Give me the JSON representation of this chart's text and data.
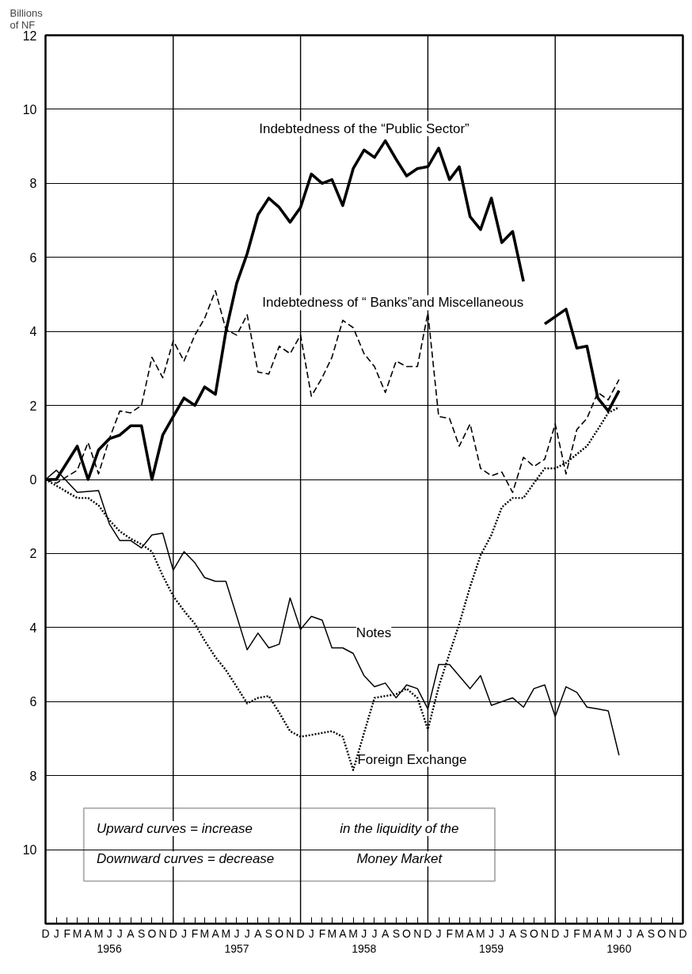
{
  "chart_data": {
    "type": "line",
    "ylabel": "Billions\nof NF",
    "xlim": [
      "1955-12",
      "1960-12"
    ],
    "ylim": [
      -12,
      12
    ],
    "xticks": [
      {
        "value": "1955-12",
        "label": "D"
      },
      {
        "value": "1956-01",
        "label": "J"
      },
      {
        "value": "1956-02",
        "label": "F"
      },
      {
        "value": "1956-03",
        "label": "M"
      },
      {
        "value": "1956-04",
        "label": "A"
      },
      {
        "value": "1956-05",
        "label": "M"
      },
      {
        "value": "1956-06",
        "label": "J\n1956"
      },
      {
        "value": "1956-07",
        "label": "J"
      },
      {
        "value": "1956-08",
        "label": "A"
      },
      {
        "value": "1956-09",
        "label": "S"
      },
      {
        "value": "1956-10",
        "label": "O"
      },
      {
        "value": "1956-11",
        "label": "N"
      },
      {
        "value": "1956-12",
        "label": "D"
      },
      {
        "value": "1957-01",
        "label": "J"
      },
      {
        "value": "1957-02",
        "label": "F"
      },
      {
        "value": "1957-03",
        "label": "M"
      },
      {
        "value": "1957-04",
        "label": "A"
      },
      {
        "value": "1957-05",
        "label": "M"
      },
      {
        "value": "1957-06",
        "label": "J\n1957"
      },
      {
        "value": "1957-07",
        "label": "J"
      },
      {
        "value": "1957-08",
        "label": "A"
      },
      {
        "value": "1957-09",
        "label": "S"
      },
      {
        "value": "1957-10",
        "label": "O"
      },
      {
        "value": "1957-11",
        "label": "N"
      },
      {
        "value": "1957-12",
        "label": "D"
      },
      {
        "value": "1958-01",
        "label": "J"
      },
      {
        "value": "1958-02",
        "label": "F"
      },
      {
        "value": "1958-03",
        "label": "M"
      },
      {
        "value": "1958-04",
        "label": "A"
      },
      {
        "value": "1958-05",
        "label": "M"
      },
      {
        "value": "1958-06",
        "label": "J\n1958"
      },
      {
        "value": "1958-07",
        "label": "J"
      },
      {
        "value": "1958-08",
        "label": "A"
      },
      {
        "value": "1958-09",
        "label": "S"
      },
      {
        "value": "1958-10",
        "label": "O"
      },
      {
        "value": "1958-11",
        "label": "N"
      },
      {
        "value": "1958-12",
        "label": "D"
      },
      {
        "value": "1959-01",
        "label": "J"
      },
      {
        "value": "1959-02",
        "label": "F"
      },
      {
        "value": "1959-03",
        "label": "M"
      },
      {
        "value": "1959-04",
        "label": "A"
      },
      {
        "value": "1959-05",
        "label": "M"
      },
      {
        "value": "1959-06",
        "label": "J\n1959"
      },
      {
        "value": "1959-07",
        "label": "J"
      },
      {
        "value": "1959-08",
        "label": "A"
      },
      {
        "value": "1959-09",
        "label": "S"
      },
      {
        "value": "1959-10",
        "label": "O"
      },
      {
        "value": "1959-11",
        "label": "N"
      },
      {
        "value": "1959-12",
        "label": "D"
      },
      {
        "value": "1960-01",
        "label": "J"
      },
      {
        "value": "1960-02",
        "label": "F"
      },
      {
        "value": "1960-03",
        "label": "M"
      },
      {
        "value": "1960-04",
        "label": "A"
      },
      {
        "value": "1960-05",
        "label": "M"
      },
      {
        "value": "1960-06",
        "label": "J\n1960"
      },
      {
        "value": "1960-07",
        "label": "J"
      },
      {
        "value": "1960-08",
        "label": "A"
      },
      {
        "value": "1960-09",
        "label": "S"
      },
      {
        "value": "1960-10",
        "label": "O"
      },
      {
        "value": "1960-11",
        "label": "N"
      },
      {
        "value": "1960-12",
        "label": "D"
      }
    ],
    "yticks": [
      {
        "value": -12,
        "label": null
      },
      {
        "value": -10,
        "label": "10"
      },
      {
        "value": -8,
        "label": "8"
      },
      {
        "value": -6,
        "label": "6"
      },
      {
        "value": -4,
        "label": "4"
      },
      {
        "value": -2,
        "label": "2"
      },
      0,
      2,
      4,
      6,
      8,
      10,
      12
    ],
    "grid": "y",
    "ref_lines": [
      {
        "axis": "x",
        "value": "1956-12",
        "color": "#000000"
      },
      {
        "axis": "x",
        "value": "1957-12",
        "color": "#000000"
      },
      {
        "axis": "x",
        "value": "1958-12",
        "color": "#000000"
      },
      {
        "axis": "x",
        "value": "1959-12",
        "color": "#000000"
      }
    ],
    "series": [
      {
        "name": "Indebtedness of the “Public Sector”",
        "color": "#000000",
        "line_style": "solid",
        "x": [
          "1955-12",
          "1956-01",
          "1956-03",
          "1956-04",
          "1956-05",
          "1956-06",
          "1956-07",
          "1956-08",
          "1956-09",
          "1956-10",
          "1956-11",
          "1956-12",
          "1957-01",
          "1957-02",
          "1957-03",
          "1957-04",
          "1957-05",
          "1957-06",
          "1957-07",
          "1957-08",
          "1957-09",
          "1957-10",
          "1957-11",
          "1957-12",
          "1958-01",
          "1958-02",
          "1958-03",
          "1958-04",
          "1958-05",
          "1958-06",
          "1958-07",
          "1958-08",
          "1958-09",
          "1958-10",
          "1958-11",
          "1958-12",
          "1959-01",
          "1959-02",
          "1959-03",
          "1959-04",
          "1959-05",
          "1959-06",
          "1959-07",
          "1959-08",
          "1959-09",
          "1959-10",
          "1959-11",
          "1960-01",
          "1960-02",
          "1960-03",
          "1960-04",
          "1960-05",
          "1960-06"
        ],
        "values": [
          0,
          0,
          0.9,
          0,
          0.8,
          1.1,
          1.2,
          1.45,
          1.45,
          0,
          1.2,
          1.7,
          2.2,
          2.0,
          2.5,
          2.3,
          4.0,
          5.3,
          6.1,
          7.15,
          7.6,
          7.35,
          6.95,
          7.35,
          8.25,
          8.0,
          8.1,
          7.4,
          8.4,
          8.9,
          8.7,
          9.15,
          8.65,
          8.2,
          8.4,
          8.45,
          8.95,
          8.1,
          8.45,
          7.1,
          6.75,
          7.6,
          6.4,
          6.7,
          5.35,
          null,
          4.2,
          4.6,
          3.55,
          3.6,
          2.2,
          1.85,
          2.4
        ]
      },
      {
        "name": "Indebtedness of “ Banks”and Miscellaneous",
        "color": "#000000",
        "line_style": "dashed",
        "x": [
          "1955-12",
          "1956-01",
          "1956-03",
          "1956-04",
          "1956-05",
          "1956-06",
          "1956-07",
          "1956-08",
          "1956-09",
          "1956-10",
          "1956-11",
          "1956-12",
          "1957-01",
          "1957-02",
          "1957-03",
          "1957-04",
          "1957-05",
          "1957-06",
          "1957-07",
          "1957-08",
          "1957-09",
          "1957-10",
          "1957-11",
          "1957-12",
          "1958-01",
          "1958-02",
          "1958-03",
          "1958-04",
          "1958-05",
          "1958-06",
          "1958-07",
          "1958-08",
          "1958-09",
          "1958-10",
          "1958-11",
          "1958-12",
          "1959-01",
          "1959-02",
          "1959-03",
          "1959-04",
          "1959-05",
          "1959-06",
          "1959-07",
          "1959-08",
          "1959-09",
          "1959-10",
          "1959-11",
          "1959-12",
          "1960-01",
          "1960-02",
          "1960-03",
          "1960-04",
          "1960-05",
          "1960-06"
        ],
        "values": [
          0,
          -0.1,
          0.25,
          1.0,
          0.15,
          1.1,
          1.85,
          1.8,
          2.0,
          3.3,
          2.75,
          3.75,
          3.2,
          3.9,
          4.35,
          5.1,
          4.05,
          3.9,
          4.45,
          2.9,
          2.85,
          3.6,
          3.4,
          3.9,
          2.25,
          2.75,
          3.3,
          4.3,
          4.1,
          3.4,
          3.05,
          2.35,
          3.2,
          3.05,
          3.05,
          4.5,
          1.7,
          1.65,
          0.9,
          1.5,
          0.3,
          0.1,
          0.2,
          -0.35,
          0.6,
          0.35,
          0.55,
          1.5,
          0.15,
          1.35,
          1.65,
          2.35,
          2.15,
          2.7
        ]
      },
      {
        "name": "Notes",
        "color": "#000000",
        "line_style": "solid",
        "x": [
          "1955-12",
          "1956-01",
          "1956-03",
          "1956-05",
          "1956-06",
          "1956-07",
          "1956-08",
          "1956-09",
          "1956-10",
          "1956-11",
          "1956-12",
          "1957-01",
          "1957-02",
          "1957-03",
          "1957-04",
          "1957-05",
          "1957-07",
          "1957-08",
          "1957-09",
          "1957-10",
          "1957-11",
          "1957-12",
          "1958-01",
          "1958-02",
          "1958-03",
          "1958-04",
          "1958-05",
          "1958-06",
          "1958-07",
          "1958-08",
          "1958-09",
          "1958-10",
          "1958-11",
          "1958-12",
          "1959-01",
          "1959-02",
          "1959-04",
          "1959-05",
          "1959-06",
          "1959-08",
          "1959-09",
          "1959-10",
          "1959-11",
          "1959-12",
          "1960-01",
          "1960-02",
          "1960-03",
          "1960-04",
          "1960-05",
          "1960-06"
        ],
        "values": [
          0,
          0.25,
          -0.35,
          -0.3,
          -1.2,
          -1.65,
          -1.65,
          -1.85,
          -1.5,
          -1.45,
          -2.45,
          -1.95,
          -2.25,
          -2.65,
          -2.75,
          -2.75,
          -4.6,
          -4.15,
          -4.55,
          -4.45,
          -3.2,
          -4.05,
          -3.7,
          -3.8,
          -4.55,
          -4.55,
          -4.7,
          -5.3,
          -5.6,
          -5.5,
          -5.9,
          -5.55,
          -5.65,
          -6.2,
          -5.0,
          -5.0,
          -5.65,
          -5.3,
          -6.1,
          -5.9,
          -6.15,
          -5.65,
          -5.55,
          -6.4,
          -5.6,
          -5.75,
          -6.15,
          -6.2,
          -6.25,
          -7.45
        ]
      },
      {
        "name": "Foreign Exchange",
        "color": "#000000",
        "line_style": "dotted",
        "x": [
          "1955-12",
          "1956-03",
          "1956-04",
          "1956-05",
          "1956-06",
          "1956-07",
          "1956-08",
          "1956-09",
          "1956-10",
          "1956-11",
          "1956-12",
          "1957-01",
          "1957-02",
          "1957-03",
          "1957-04",
          "1957-05",
          "1957-06",
          "1957-07",
          "1957-08",
          "1957-09",
          "1957-10",
          "1957-11",
          "1957-12",
          "1958-01",
          "1958-03",
          "1958-04",
          "1958-05",
          "1958-06",
          "1958-07",
          "1958-08",
          "1958-09",
          "1958-10",
          "1958-11",
          "1958-12",
          "1959-01",
          "1959-02",
          "1959-03",
          "1959-04",
          "1959-05",
          "1959-06",
          "1959-07",
          "1959-08",
          "1959-09",
          "1959-10",
          "1959-11",
          "1959-12",
          "1960-01",
          "1960-03",
          "1960-04",
          "1960-05",
          "1960-06"
        ],
        "values": [
          0,
          -0.5,
          -0.5,
          -0.7,
          -1.1,
          -1.4,
          -1.6,
          -1.75,
          -1.95,
          -2.6,
          -3.15,
          -3.55,
          -3.9,
          -4.35,
          -4.8,
          -5.15,
          -5.6,
          -6.05,
          -5.9,
          -5.85,
          -6.3,
          -6.8,
          -6.95,
          -6.9,
          -6.8,
          -6.95,
          -7.85,
          -6.85,
          -5.9,
          -5.85,
          -5.8,
          -5.65,
          -5.9,
          -6.75,
          -5.6,
          -4.7,
          -3.9,
          -2.9,
          -2.05,
          -1.5,
          -0.75,
          -0.5,
          -0.5,
          -0.1,
          0.3,
          0.3,
          0.45,
          0.9,
          1.35,
          1.8,
          1.95
        ]
      }
    ],
    "annotations": [
      "Upward curves  = increase",
      "Downward curves = decrease",
      "in the liquidity of the",
      "Money Market"
    ]
  }
}
